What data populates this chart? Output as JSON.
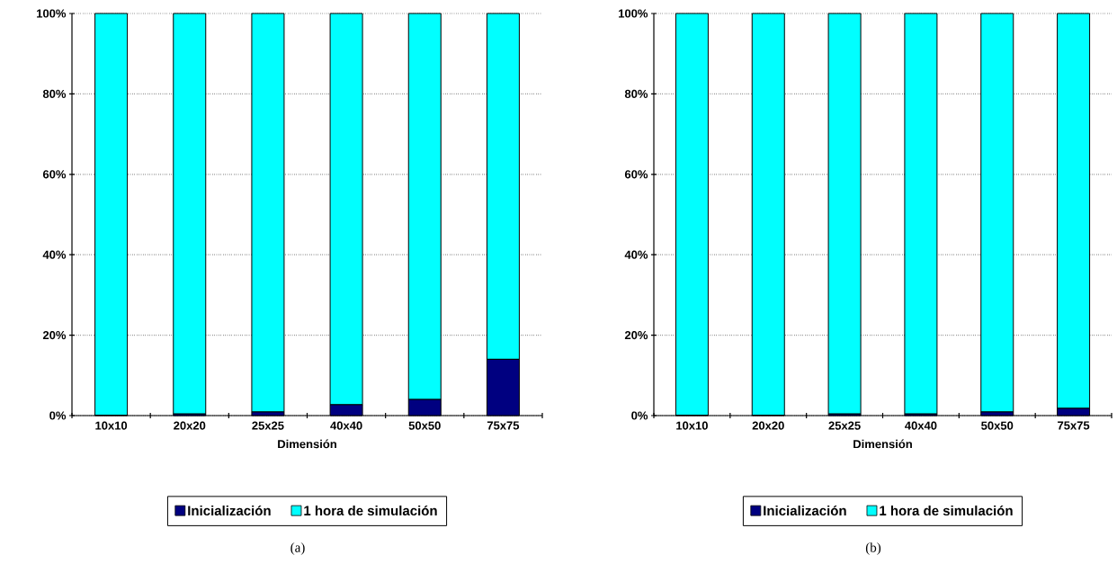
{
  "chart_data": [
    {
      "type": "bar",
      "stacked": true,
      "xlabel": "Dimensión",
      "categories": [
        "10x10",
        "20x20",
        "25x25",
        "40x40",
        "50x50",
        "75x75"
      ],
      "series": [
        {
          "name": "Inicialización",
          "color": "#000080",
          "values": [
            0.1,
            0.4,
            0.9,
            2.7,
            4,
            14
          ]
        },
        {
          "name": "1 hora de simulación",
          "color": "#00ffff",
          "values": [
            99.9,
            99.6,
            99.1,
            97.3,
            96,
            86
          ]
        }
      ],
      "ylim": [
        0,
        100
      ],
      "yticks": [
        {
          "value": 0,
          "label": "0%"
        },
        {
          "value": 20,
          "label": "20%"
        },
        {
          "value": 40,
          "label": "40%"
        },
        {
          "value": 60,
          "label": "60%"
        },
        {
          "value": 80,
          "label": "80%"
        },
        {
          "value": 100,
          "label": "100%"
        }
      ],
      "grid": "y",
      "legend": "bottom",
      "annotations": [
        "(a)"
      ]
    },
    {
      "type": "bar",
      "stacked": true,
      "xlabel": "Dimensión",
      "categories": [
        "10x10",
        "20x20",
        "25x25",
        "40x40",
        "50x50",
        "75x75"
      ],
      "series": [
        {
          "name": "Inicialización",
          "color": "#000080",
          "values": [
            0.1,
            0.1,
            0.4,
            0.4,
            0.9,
            1.8
          ]
        },
        {
          "name": "1 hora de simulación",
          "color": "#00ffff",
          "values": [
            99.9,
            99.9,
            99.6,
            99.6,
            99.1,
            98.2
          ]
        }
      ],
      "ylim": [
        0,
        100
      ],
      "yticks": [
        {
          "value": 0,
          "label": "0%"
        },
        {
          "value": 20,
          "label": "20%"
        },
        {
          "value": 40,
          "label": "40%"
        },
        {
          "value": 60,
          "label": "60%"
        },
        {
          "value": 80,
          "label": "80%"
        },
        {
          "value": 100,
          "label": "100%"
        }
      ],
      "grid": "y",
      "legend": "bottom",
      "annotations": [
        "(b)"
      ]
    }
  ]
}
